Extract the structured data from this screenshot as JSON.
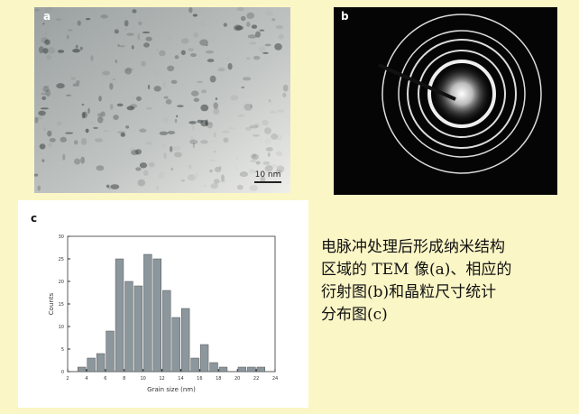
{
  "panels": [
    {
      "label": "a",
      "scale_bar": "10 nm"
    },
    {
      "label": "b"
    },
    {
      "label": "c"
    }
  ],
  "caption": [
    "电脉冲处理后形成纳米结构",
    "区域的 TEM 像(a)、相应的",
    "衍射图(b)和晶粒尺寸统计",
    "分布图(c)"
  ],
  "chart_data": {
    "type": "histogram",
    "x_label": "Grain size (nm)",
    "y_label": "Counts",
    "bins": [
      3,
      4,
      5,
      6,
      7,
      8,
      9,
      10,
      11,
      12,
      13,
      14,
      15,
      16,
      17,
      18,
      19,
      20,
      21,
      22,
      23
    ],
    "values": [
      1,
      3,
      4,
      9,
      25,
      20,
      19,
      26,
      25,
      18,
      12,
      14,
      3,
      6,
      2,
      1,
      0,
      1,
      1,
      1
    ],
    "color": "#8c979d",
    "xlim": [
      2,
      24
    ],
    "xticks": [
      2,
      4,
      6,
      8,
      10,
      12,
      14,
      16,
      18,
      20,
      22,
      24
    ],
    "ylim": [
      0,
      30
    ],
    "yticks": [
      0,
      5,
      10,
      15,
      20,
      25,
      30
    ]
  }
}
